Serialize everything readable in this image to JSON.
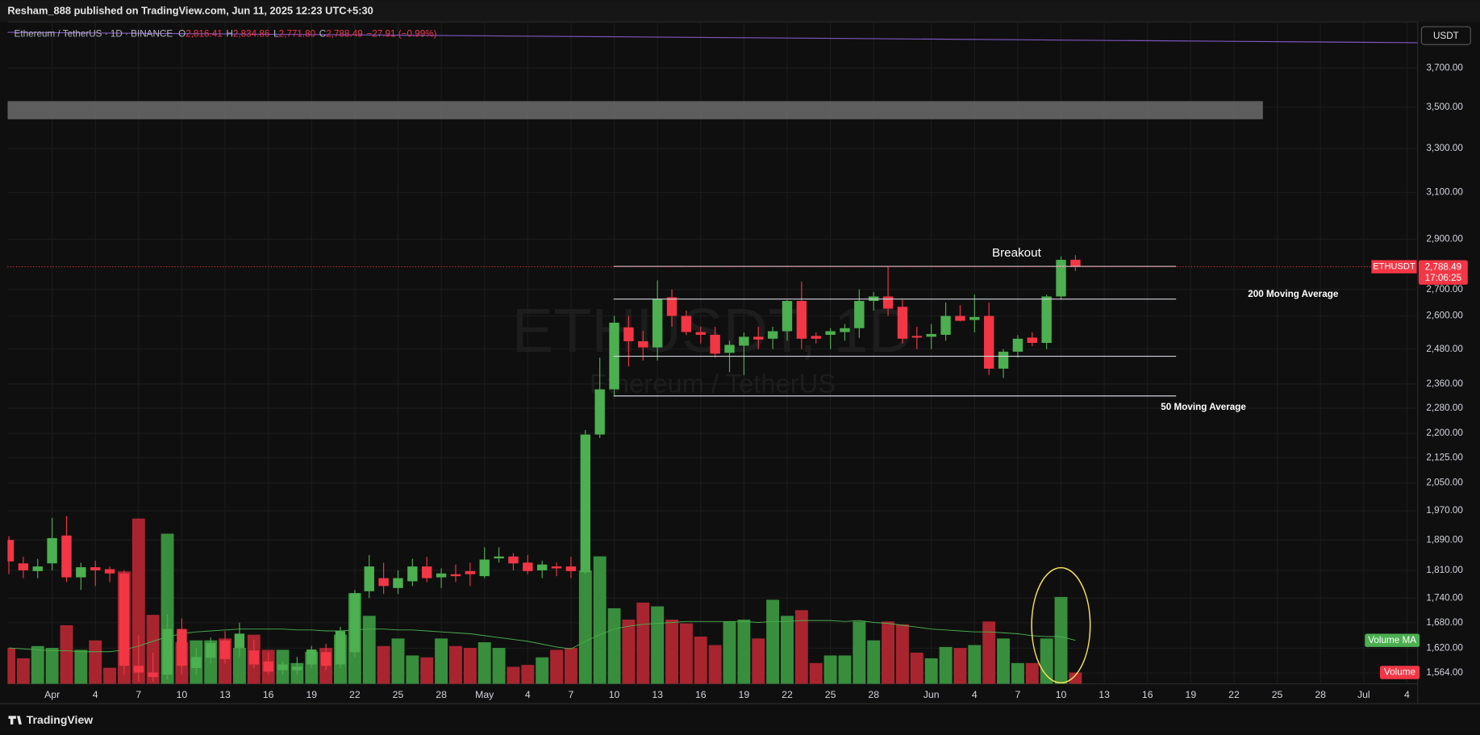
{
  "chart_data": {
    "type": "candlestick",
    "header": "Resham_888 published on TradingView.com, Jun 11, 2025 12:23 UTC+5:30",
    "symbol": "Ethereum / TetherUS · 1D · BINANCE",
    "ohlc_legend": [
      {
        "key": "O",
        "value": "2,816.41"
      },
      {
        "key": "H",
        "value": "2,834.86"
      },
      {
        "key": "L",
        "value": "2,771.80"
      },
      {
        "key": "C",
        "value": "2,788.49"
      }
    ],
    "change": "−27.91 (−0.99%)",
    "watermark": [
      "ETHUSDT, 1D",
      "Ethereum / TetherUS"
    ],
    "currency": "USDT",
    "brand": "TradingView",
    "categories": [
      null,
      null,
      null,
      "Apr",
      null,
      null,
      "4",
      null,
      null,
      "7",
      null,
      null,
      "10",
      null,
      null,
      "13",
      null,
      null,
      "16",
      null,
      null,
      "19",
      null,
      null,
      "22",
      null,
      null,
      "25",
      null,
      null,
      "28",
      null,
      null,
      "May",
      null,
      null,
      "4",
      null,
      null,
      "7",
      null,
      null,
      "10",
      null,
      null,
      "13",
      null,
      null,
      "16",
      null,
      null,
      "19",
      null,
      null,
      "22",
      null,
      null,
      "25",
      null,
      null,
      "28",
      null,
      null,
      null,
      "Jun",
      null,
      null,
      "4",
      null,
      null,
      "7",
      null,
      null,
      "10",
      null,
      null,
      "13",
      null,
      null,
      "16",
      null,
      null,
      "19",
      null,
      null,
      "22",
      null,
      null,
      "25",
      null,
      null,
      "28",
      null,
      null,
      "Jul",
      null,
      null,
      "4"
    ],
    "open": [
      1890,
      1828,
      1808,
      1828,
      1902,
      1792,
      1818,
      1813,
      1802,
      1580,
      1565,
      1560,
      1665,
      1575,
      1598,
      1638,
      1620,
      1615,
      1590,
      1570,
      1570,
      1583,
      1611,
      1583,
      1611,
      1757,
      1790,
      1765,
      1782,
      1820,
      1792,
      1800,
      1808,
      1795,
      1841,
      1846,
      1830,
      1810,
      1820,
      1820,
      1805,
      2196,
      2342,
      2558,
      2508,
      2486,
      2670,
      2600,
      2541,
      2531,
      2467,
      2492,
      2524,
      2517,
      2544,
      2656,
      2527,
      2531,
      2541,
      2555,
      2656,
      2673,
      2634,
      2527,
      2524,
      2531,
      2600,
      2585,
      2600,
      2412,
      2471,
      2521,
      2502,
      2673,
      2816.41,
      null,
      null,
      null,
      null,
      null,
      null,
      null,
      null,
      null,
      null,
      null,
      null,
      null,
      null,
      null,
      null,
      null,
      null,
      null,
      null,
      null,
      null,
      null
    ],
    "high": [
      1900,
      1845,
      1840,
      1950,
      1955,
      1830,
      1835,
      1820,
      1810,
      1650,
      1610,
      1700,
      1690,
      1620,
      1645,
      1660,
      1680,
      1640,
      1610,
      1590,
      1600,
      1625,
      1630,
      1670,
      1760,
      1850,
      1830,
      1810,
      1840,
      1845,
      1815,
      1825,
      1830,
      1870,
      1870,
      1855,
      1850,
      1835,
      1830,
      1845,
      2210,
      2450,
      2600,
      2600,
      2545,
      2735,
      2700,
      2620,
      2560,
      2560,
      2510,
      2540,
      2560,
      2560,
      2660,
      2730,
      2540,
      2555,
      2570,
      2700,
      2690,
      2790,
      2660,
      2560,
      2570,
      2650,
      2640,
      2680,
      2650,
      2480,
      2530,
      2540,
      2680,
      2830,
      2834.86,
      null,
      null,
      null,
      null,
      null,
      null,
      null,
      null,
      null,
      null,
      null,
      null,
      null,
      null,
      null,
      null,
      null,
      null,
      null,
      null,
      null,
      null,
      null
    ],
    "low": [
      1800,
      1790,
      1790,
      1810,
      1780,
      1760,
      1770,
      1780,
      1560,
      1545,
      1545,
      1550,
      1560,
      1560,
      1585,
      1585,
      1600,
      1575,
      1560,
      1560,
      1560,
      1575,
      1570,
      1575,
      1600,
      1740,
      1750,
      1750,
      1770,
      1780,
      1765,
      1780,
      1770,
      1790,
      1830,
      1810,
      1800,
      1790,
      1795,
      1790,
      1800,
      2185,
      2320,
      2420,
      2440,
      2440,
      2560,
      2530,
      2500,
      2450,
      2400,
      2390,
      2480,
      2480,
      2510,
      2480,
      2500,
      2480,
      2510,
      2520,
      2620,
      2600,
      2500,
      2480,
      2480,
      2510,
      2580,
      2540,
      2390,
      2380,
      2450,
      2490,
      2480,
      2660,
      2771.8,
      null,
      null,
      null,
      null,
      null,
      null,
      null,
      null,
      null,
      null,
      null,
      null,
      null,
      null,
      null,
      null,
      null,
      null,
      null,
      null,
      null,
      null,
      null
    ],
    "close": [
      1833,
      1810,
      1820,
      1895,
      1792,
      1818,
      1810,
      1802,
      1580,
      1565,
      1555,
      1665,
      1580,
      1600,
      1632,
      1595,
      1654,
      1583,
      1567,
      1583,
      1578,
      1617,
      1580,
      1660,
      1752,
      1820,
      1770,
      1790,
      1820,
      1790,
      1802,
      1795,
      1800,
      1838,
      1846,
      1828,
      1808,
      1825,
      1815,
      1808,
      2196,
      2342,
      2575,
      2508,
      2486,
      2663,
      2600,
      2541,
      2531,
      2464,
      2495,
      2524,
      2514,
      2544,
      2656,
      2517,
      2517,
      2544,
      2555,
      2656,
      2673,
      2627,
      2517,
      2521,
      2534,
      2600,
      2582,
      2596,
      2412,
      2471,
      2517,
      2502,
      2673,
      2816,
      2788.49,
      null,
      null,
      null,
      null,
      null,
      null,
      null,
      null,
      null,
      null,
      null,
      null,
      null,
      null,
      null,
      null,
      null,
      null,
      null,
      null,
      null,
      null,
      null
    ],
    "up_color": "#4caf50",
    "down_color": "#f23645",
    "volume": {
      "name": "Volume",
      "ma_name": "Volume MA",
      "ylim": [
        0,
        700
      ],
      "up_color": "#388e3c",
      "down_color": "#a8252f",
      "ma_color": "#4caf50",
      "values": [
        38,
        27,
        40,
        38,
        62,
        36,
        46,
        17,
        119,
        175,
        73,
        159,
        44,
        46,
        46,
        48,
        38,
        52,
        36,
        36,
        22,
        34,
        38,
        52,
        96,
        72,
        40,
        48,
        30,
        28,
        48,
        40,
        38,
        44,
        38,
        18,
        20,
        28,
        36,
        38,
        120,
        135,
        80,
        68,
        86,
        82,
        68,
        64,
        50,
        41,
        66,
        68,
        48,
        89,
        72,
        78,
        22,
        30,
        30,
        66,
        46,
        66,
        63,
        33,
        27,
        39,
        38,
        41,
        66,
        48,
        22,
        22,
        48,
        92,
        12,
        null,
        null,
        null,
        null,
        null,
        null,
        null,
        null,
        null,
        null,
        null,
        null,
        null,
        null,
        null,
        null,
        null,
        null,
        null,
        null,
        null,
        null,
        null
      ],
      "ma_values": [
        38,
        37,
        36,
        35,
        35,
        34,
        34,
        34,
        36,
        40,
        45,
        50,
        53,
        55,
        56,
        57,
        58,
        58,
        58,
        58,
        57,
        57,
        56,
        56,
        57,
        58,
        58,
        57,
        57,
        56,
        55,
        54,
        53,
        51,
        49,
        47,
        45,
        42,
        39,
        37,
        45,
        52,
        58,
        61,
        63,
        64,
        65,
        66,
        66,
        66,
        66,
        66,
        65,
        66,
        66,
        67,
        67,
        67,
        66,
        67,
        65,
        64,
        62,
        60,
        58,
        57,
        56,
        55,
        55,
        54,
        53,
        51,
        50,
        50,
        46,
        null,
        null,
        null,
        null,
        null,
        null,
        null,
        null,
        null,
        null,
        null,
        null,
        null,
        null,
        null,
        null,
        null,
        null,
        null,
        null,
        null,
        null,
        null
      ]
    },
    "log_scale": true,
    "grid": true,
    "ylim": [
      1540,
      3946
    ],
    "yticks": [
      {
        "value": 3700,
        "label": "3,700.00"
      },
      {
        "value": 3500,
        "label": "3,500.00"
      },
      {
        "value": 3300,
        "label": "3,300.00"
      },
      {
        "value": 3100,
        "label": "3,100.00"
      },
      {
        "value": 2900,
        "label": "2,900.00"
      },
      {
        "value": 2700,
        "label": "2,700.00"
      },
      {
        "value": 2600,
        "label": "2,600.00"
      },
      {
        "value": 2480,
        "label": "2,480.00"
      },
      {
        "value": 2360,
        "label": "2,360.00"
      },
      {
        "value": 2280,
        "label": "2,280.00"
      },
      {
        "value": 2200,
        "label": "2,200.00"
      },
      {
        "value": 2125,
        "label": "2,125.00"
      },
      {
        "value": 2050,
        "label": "2,050.00"
      },
      {
        "value": 1970,
        "label": "1,970.00"
      },
      {
        "value": 1890,
        "label": "1,890.00"
      },
      {
        "value": 1810,
        "label": "1,810.00"
      },
      {
        "value": 1740,
        "label": "1,740.00"
      },
      {
        "value": 1680,
        "label": "1,680.00"
      },
      {
        "value": 1620,
        "label": "1,620.00"
      },
      {
        "value": 1564,
        "label": "1,564.00"
      }
    ],
    "zone": {
      "low": 3440,
      "high": 3530,
      "color": "#6b6b6b"
    },
    "levels": [
      {
        "value": 2790,
        "label": "Breakout"
      },
      {
        "value": 2663,
        "label": "200 Moving Average"
      },
      {
        "value": 2455
      },
      {
        "value": 2320,
        "label": "50 Moving Average"
      }
    ],
    "last_price": {
      "value": 2788.49,
      "label": "2,788.49",
      "tag": "ETHUSDT",
      "countdown": "17:06:25"
    }
  }
}
